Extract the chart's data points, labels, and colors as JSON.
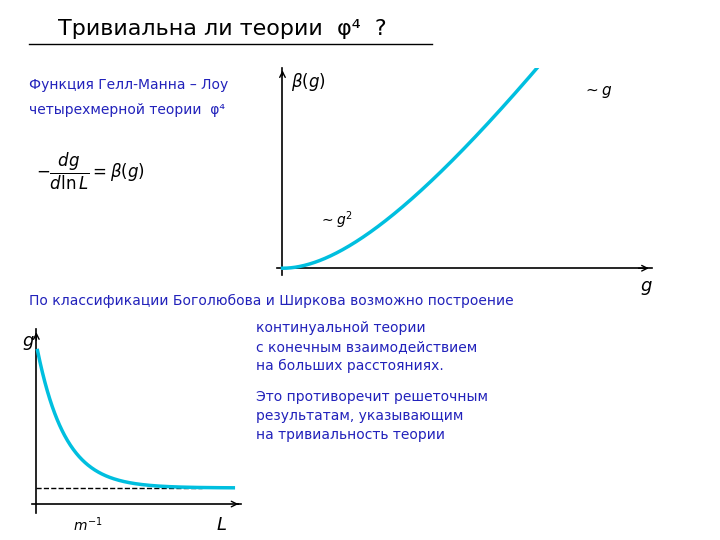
{
  "title": "Тривиальна ли теории  φ⁴  ?",
  "title_color": "#000000",
  "title_fontsize": 16,
  "bg_color": "#ffffff",
  "cyan_color": "#00BFDF",
  "blue_color": "#2222BB",
  "top_left_text1": "Функция Гелл-Манна – Лоу",
  "top_left_text2": "четырехмерной теории  φ⁴",
  "bottom_line1": "По классификации Боголюбова и Ширкова возможно построение",
  "bottom_line2": "континуальной теории",
  "bottom_line3": "с конечным взаимодействием",
  "bottom_line4": "на больших расстояниях.",
  "bottom_line5": "Это противоречит решеточным",
  "bottom_line6": "результатам, указывающим",
  "bottom_line7": "на тривиальность теории"
}
